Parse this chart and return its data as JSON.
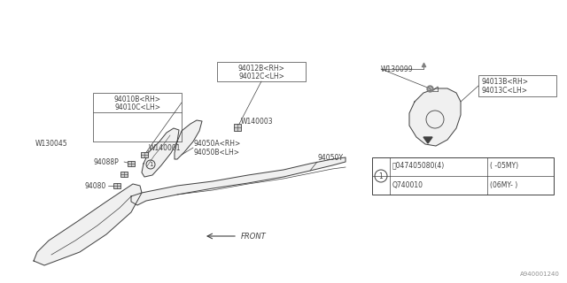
{
  "bg_color": "#ffffff",
  "lc": "#404040",
  "lc_thin": "#606060",
  "part_fill": "#f0f0f0",
  "part_stroke": "#404040",
  "labels_fontsize": 6.0,
  "small_fontsize": 5.5,
  "parts": {
    "94010B_RH": "94010B<RH>",
    "94010C_LH": "94010C<LH>",
    "W130045": "W130045",
    "W140001": "W140001",
    "94088P": "94088P",
    "94080": "94080",
    "94012B_RH": "94012B<RH>",
    "94012C_LH": "94012C<LH>",
    "W140003": "W140003",
    "94050A_RH": "94050A<RH>",
    "94050B_LH": "94050B<LH>",
    "94050Y": "94050Y",
    "W130099": "W130099",
    "94013B_RH": "94013B<RH>",
    "94013C_LH": "94013C<LH>"
  },
  "table_row1_part": "047405080(4)",
  "table_row1_range": "( -05MY)",
  "table_row2_part": "Q740010",
  "table_row2_range": "(06MY- )",
  "watermark": "A940001240"
}
